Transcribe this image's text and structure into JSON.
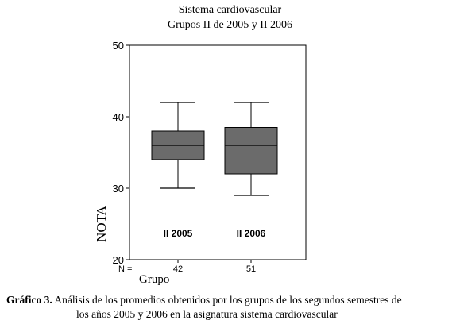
{
  "chart_data": {
    "type": "boxplot",
    "title": [
      "Sistema cardiovascular",
      "Grupos II de 2005 y II 2006"
    ],
    "ylabel": "NOTA",
    "xlabel": "Grupo",
    "ylim": [
      20,
      50
    ],
    "yticks": [
      20,
      30,
      40,
      50
    ],
    "n_label": "N =",
    "box_color": "#6b6b6b",
    "groups": [
      {
        "name": "II 2005",
        "n": "42",
        "min": 30,
        "q1": 34,
        "median": 36,
        "q3": 38,
        "max": 42
      },
      {
        "name": "II 2006",
        "n": "51",
        "min": 29,
        "q1": 32,
        "median": 36,
        "q3": 38.5,
        "max": 42
      }
    ]
  },
  "caption": {
    "label": "Gráfico 3.",
    "line1": "Análisis de los promedios obtenidos por los grupos de los segundos semestres de",
    "line2": "los años 2005 y 2006 en la asignatura sistema cardiovascular"
  }
}
